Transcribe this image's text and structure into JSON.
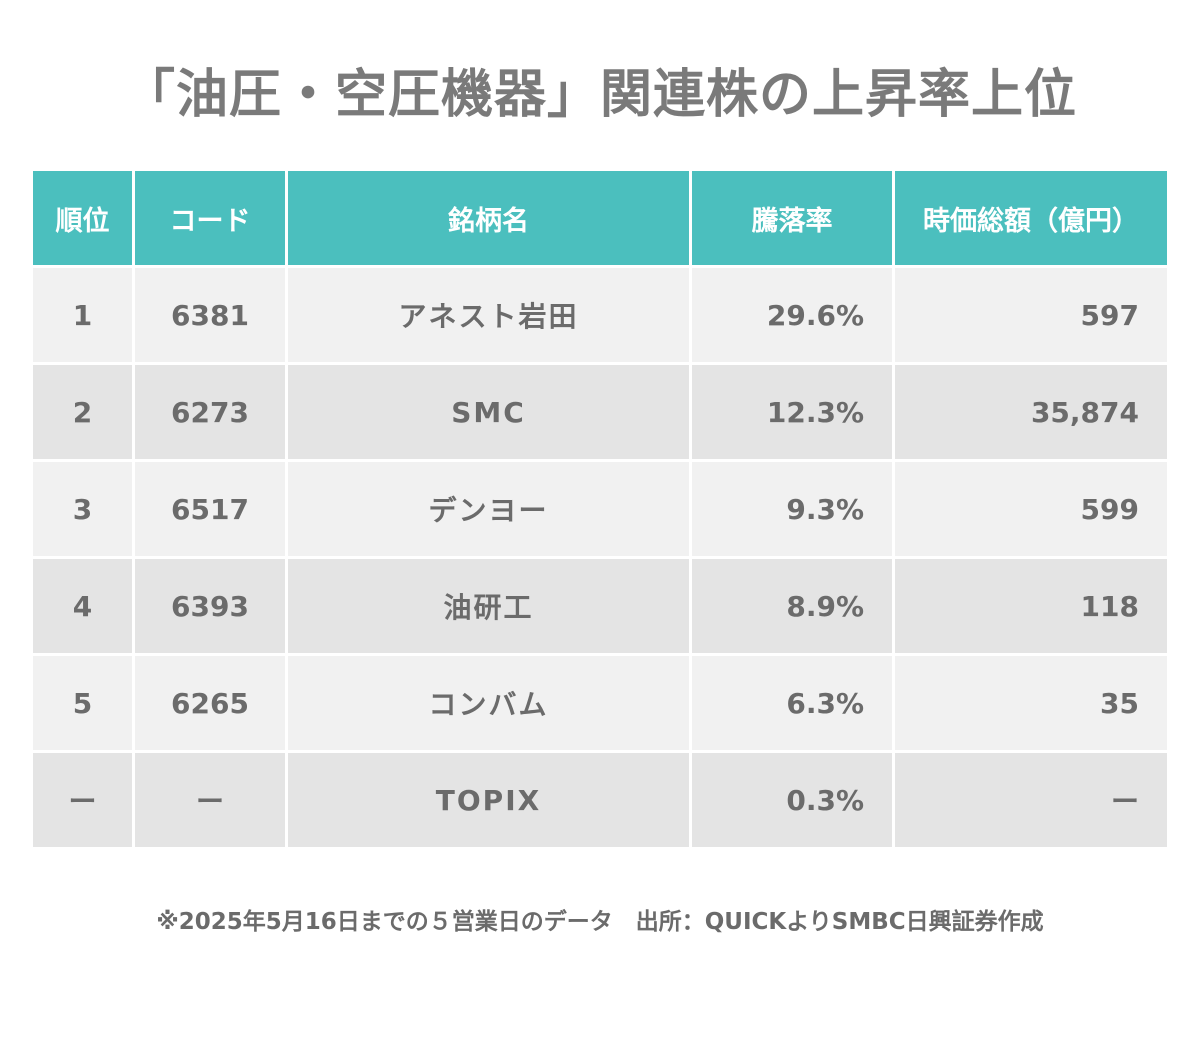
{
  "title": "「油圧・空圧機器」関連株の上昇率上位",
  "table": {
    "headers": {
      "rank": "順位",
      "code": "コード",
      "name": "銘柄名",
      "change": "騰落率",
      "market_cap": "時価総額（億円）"
    },
    "rows": [
      {
        "rank": "1",
        "code": "6381",
        "name": "アネスト岩田",
        "change": "29.6%",
        "market_cap": "597"
      },
      {
        "rank": "2",
        "code": "6273",
        "name": "SMC",
        "change": "12.3%",
        "market_cap": "35,874"
      },
      {
        "rank": "3",
        "code": "6517",
        "name": "デンヨー",
        "change": "9.3%",
        "market_cap": "599"
      },
      {
        "rank": "4",
        "code": "6393",
        "name": "油研工",
        "change": "8.9%",
        "market_cap": "118"
      },
      {
        "rank": "5",
        "code": "6265",
        "name": "コンバム",
        "change": "6.3%",
        "market_cap": "35"
      },
      {
        "rank": "ー",
        "code": "ー",
        "name": "TOPIX",
        "change": "0.3%",
        "market_cap": "ー"
      }
    ]
  },
  "footnote": "※2025年5月16日までの５営業日のデータ　出所：QUICKよりSMBC日興証券作成",
  "colors": {
    "header_bg": "#4bbfbe",
    "row_light": "#f1f1f1",
    "row_dark": "#e4e4e4",
    "text": "#6b6b6b"
  }
}
